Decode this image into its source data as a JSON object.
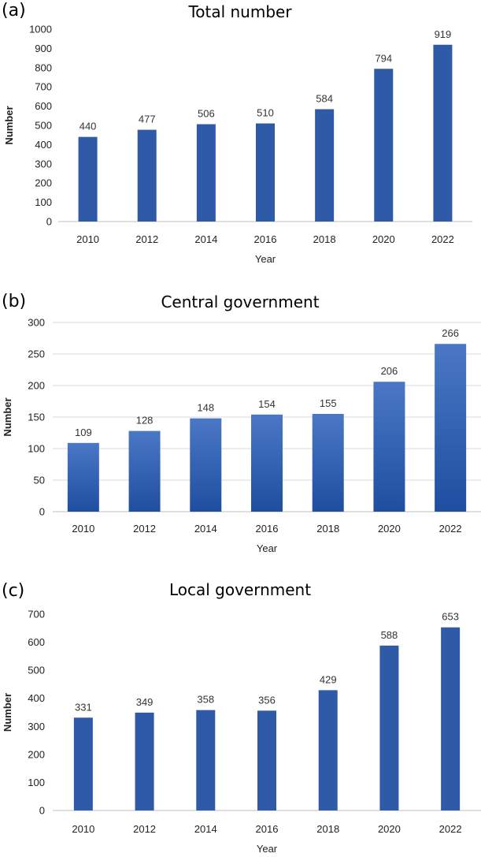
{
  "chart_data": [
    {
      "panel": "(a)",
      "type": "bar",
      "title": "Total number",
      "xlabel": "Year",
      "ylabel": "Number",
      "categories": [
        "2010",
        "2012",
        "2014",
        "2016",
        "2018",
        "2020",
        "2022"
      ],
      "values": [
        440,
        477,
        506,
        510,
        584,
        794,
        919
      ],
      "ylim": [
        0,
        1000
      ],
      "yticks": [
        0,
        100,
        200,
        300,
        400,
        500,
        600,
        700,
        800,
        900,
        1000
      ],
      "grid": false,
      "color": "#2e5aa8"
    },
    {
      "panel": "(b)",
      "type": "bar",
      "title": "Central government",
      "xlabel": "Year",
      "ylabel": "Number",
      "categories": [
        "2010",
        "2012",
        "2014",
        "2016",
        "2018",
        "2020",
        "2022"
      ],
      "values": [
        109,
        128,
        148,
        154,
        155,
        206,
        266
      ],
      "ylim": [
        0,
        300
      ],
      "yticks": [
        0,
        50,
        100,
        150,
        200,
        250,
        300
      ],
      "grid": true,
      "color": "#2f5fb3"
    },
    {
      "panel": "(c)",
      "type": "bar",
      "title": "Local government",
      "xlabel": "Year",
      "ylabel": "Number",
      "categories": [
        "2010",
        "2012",
        "2014",
        "2016",
        "2018",
        "2020",
        "2022"
      ],
      "values": [
        331,
        349,
        358,
        356,
        429,
        588,
        653
      ],
      "ylim": [
        0,
        700
      ],
      "yticks": [
        0,
        100,
        200,
        300,
        400,
        500,
        600,
        700
      ],
      "grid": false,
      "color": "#2e5aa8"
    }
  ]
}
